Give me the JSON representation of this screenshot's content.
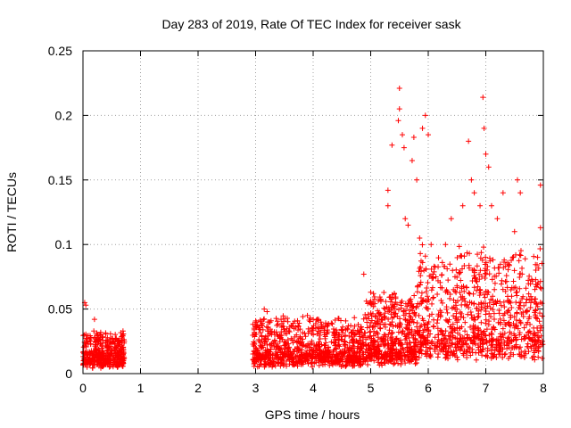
{
  "chart_data": {
    "type": "scatter",
    "title": "Day 283 of 2019, Rate Of TEC Index for receiver sask",
    "xlabel": "GPS time / hours",
    "ylabel": "ROTI / TECUs",
    "xlim": [
      0,
      8
    ],
    "ylim": [
      0,
      0.25
    ],
    "xticks": [
      0,
      1,
      2,
      3,
      4,
      5,
      6,
      7,
      8
    ],
    "yticks": [
      0,
      0.05,
      0.1,
      0.15,
      0.2,
      0.25
    ],
    "xtick_labels": [
      "0",
      "1",
      "2",
      "3",
      "4",
      "5",
      "6",
      "7",
      "8"
    ],
    "ytick_labels": [
      "0",
      "0.05",
      "0.1",
      "0.15",
      "0.2",
      "0.25"
    ],
    "grid": true,
    "marker": "+",
    "color": "#ff0000",
    "segments": [
      {
        "x_start": 0.0,
        "x_end": 0.72,
        "base": 0.012,
        "spread": 0.014,
        "count": 420
      },
      {
        "x_start": 2.95,
        "x_end": 4.9,
        "base": 0.014,
        "spread": 0.02,
        "count": 900
      },
      {
        "x_start": 4.9,
        "x_end": 5.8,
        "base": 0.018,
        "spread": 0.03,
        "count": 500
      },
      {
        "x_start": 5.8,
        "x_end": 8.0,
        "base": 0.03,
        "spread": 0.045,
        "count": 900
      }
    ],
    "notable_points": [
      {
        "x": 0.03,
        "y": 0.055
      },
      {
        "x": 0.05,
        "y": 0.053
      },
      {
        "x": 0.2,
        "y": 0.042
      },
      {
        "x": 0.42,
        "y": 0.026
      },
      {
        "x": 3.15,
        "y": 0.05
      },
      {
        "x": 3.2,
        "y": 0.048
      },
      {
        "x": 3.9,
        "y": 0.045
      },
      {
        "x": 3.95,
        "y": 0.043
      },
      {
        "x": 4.88,
        "y": 0.077
      },
      {
        "x": 5.0,
        "y": 0.063
      },
      {
        "x": 5.3,
        "y": 0.142
      },
      {
        "x": 5.3,
        "y": 0.13
      },
      {
        "x": 5.37,
        "y": 0.177
      },
      {
        "x": 5.48,
        "y": 0.196
      },
      {
        "x": 5.5,
        "y": 0.221
      },
      {
        "x": 5.5,
        "y": 0.205
      },
      {
        "x": 5.55,
        "y": 0.185
      },
      {
        "x": 5.58,
        "y": 0.175
      },
      {
        "x": 5.6,
        "y": 0.12
      },
      {
        "x": 5.65,
        "y": 0.115
      },
      {
        "x": 5.72,
        "y": 0.165
      },
      {
        "x": 5.75,
        "y": 0.183
      },
      {
        "x": 5.8,
        "y": 0.15
      },
      {
        "x": 5.85,
        "y": 0.105
      },
      {
        "x": 5.9,
        "y": 0.19
      },
      {
        "x": 5.95,
        "y": 0.2
      },
      {
        "x": 6.0,
        "y": 0.185
      },
      {
        "x": 6.05,
        "y": 0.1
      },
      {
        "x": 6.3,
        "y": 0.1
      },
      {
        "x": 6.4,
        "y": 0.12
      },
      {
        "x": 6.6,
        "y": 0.13
      },
      {
        "x": 6.7,
        "y": 0.18
      },
      {
        "x": 6.75,
        "y": 0.15
      },
      {
        "x": 6.8,
        "y": 0.14
      },
      {
        "x": 6.9,
        "y": 0.13
      },
      {
        "x": 6.95,
        "y": 0.214
      },
      {
        "x": 6.97,
        "y": 0.19
      },
      {
        "x": 7.0,
        "y": 0.17
      },
      {
        "x": 7.05,
        "y": 0.16
      },
      {
        "x": 7.1,
        "y": 0.13
      },
      {
        "x": 7.2,
        "y": 0.12
      },
      {
        "x": 7.3,
        "y": 0.14
      },
      {
        "x": 7.5,
        "y": 0.11
      },
      {
        "x": 7.55,
        "y": 0.15
      },
      {
        "x": 7.6,
        "y": 0.14
      },
      {
        "x": 7.95,
        "y": 0.146
      },
      {
        "x": 7.95,
        "y": 0.113
      },
      {
        "x": 7.9,
        "y": 0.09
      }
    ]
  }
}
